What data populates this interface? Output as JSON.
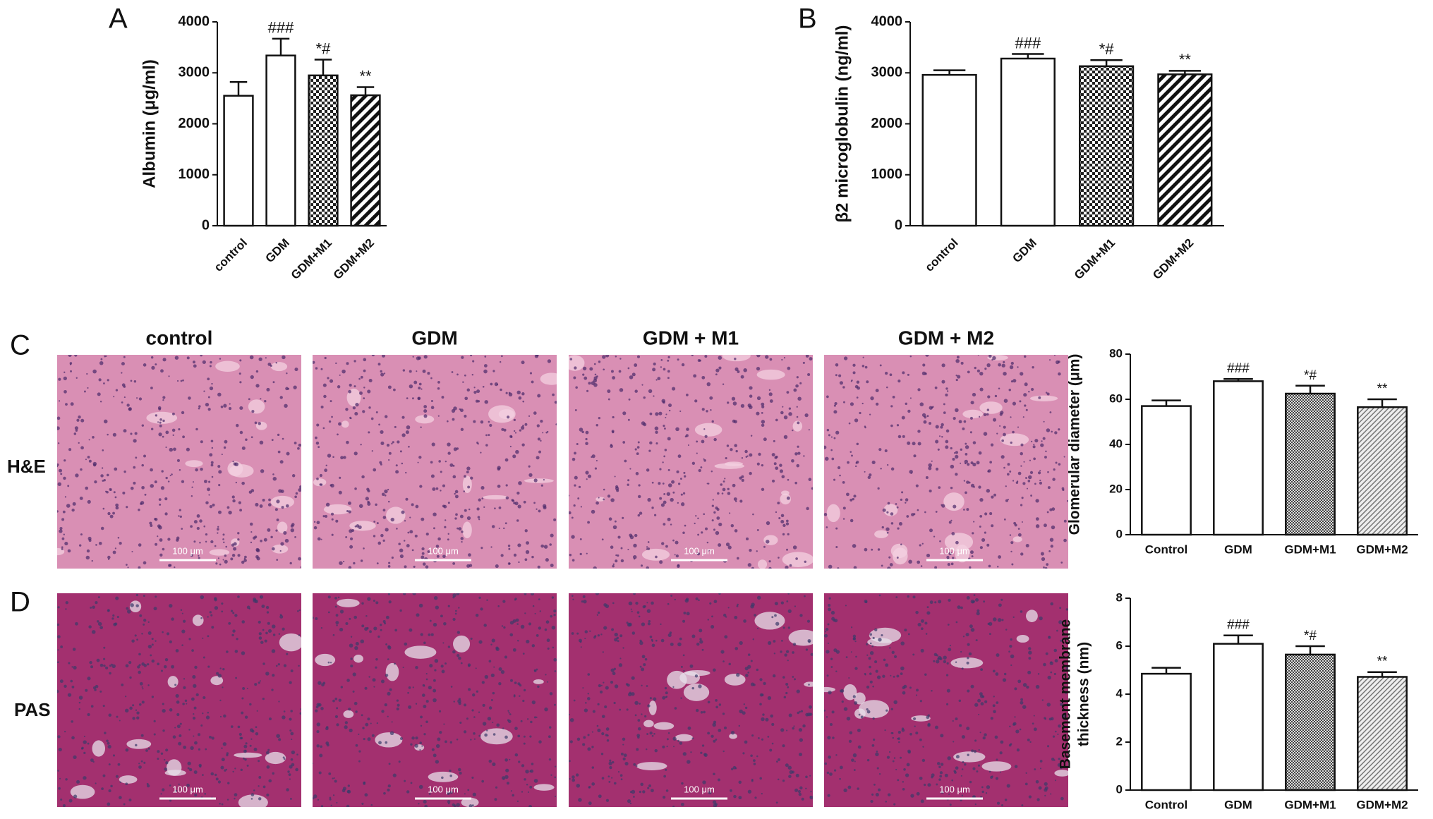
{
  "figure": {
    "panels": [
      "A",
      "B",
      "C",
      "D"
    ],
    "columns": [
      "control",
      "GDM",
      "GDM + M1",
      "GDM + M2"
    ],
    "rows": [
      "H&E",
      "PAS"
    ],
    "scale_bar": "100 μm"
  },
  "chart_data": [
    {
      "type": "bar",
      "ylabel": [
        "Albumin (μg/ml)"
      ],
      "categories": [
        "control",
        "GDM",
        "GDM+M1",
        "GDM+M2"
      ],
      "values": [
        2550,
        3340,
        2950,
        2560
      ],
      "errors": [
        270,
        330,
        310,
        160
      ],
      "annotations": [
        null,
        "###",
        "*#",
        "**"
      ],
      "patterns": [
        "white",
        "black",
        "checker",
        "hatch"
      ],
      "ylim": [
        0,
        4000
      ],
      "yticks": [
        0,
        1000,
        2000,
        3000,
        4000
      ]
    },
    {
      "type": "bar",
      "ylabel": [
        "β2 microglobulin (ng/ml)"
      ],
      "categories": [
        "control",
        "GDM",
        "GDM+M1",
        "GDM+M2"
      ],
      "values": [
        2960,
        3280,
        3130,
        2970
      ],
      "errors": [
        90,
        90,
        120,
        70
      ],
      "annotations": [
        null,
        "###",
        "*#",
        "**"
      ],
      "patterns": [
        "white",
        "black",
        "checker",
        "hatch"
      ],
      "ylim": [
        0,
        4000
      ],
      "yticks": [
        0,
        1000,
        2000,
        3000,
        4000
      ]
    },
    {
      "type": "bar",
      "ylabel": [
        "Glomerular diameter (μm)"
      ],
      "categories": [
        "Control",
        "GDM",
        "GDM+M1",
        "GDM+M2"
      ],
      "values": [
        57,
        68,
        62.5,
        56.5
      ],
      "errors": [
        2.5,
        1,
        3.5,
        3.5
      ],
      "annotations": [
        null,
        "###",
        "*#",
        "**"
      ],
      "patterns": [
        "white",
        "black",
        "checker-fine",
        "hatch-fine"
      ],
      "ylim": [
        0,
        80
      ],
      "yticks": [
        0,
        20,
        40,
        60,
        80
      ]
    },
    {
      "type": "bar",
      "ylabel": [
        "Basement membrane",
        "thickness (nm)"
      ],
      "categories": [
        "Control",
        "GDM",
        "GDM+M1",
        "GDM+M2"
      ],
      "values": [
        4.85,
        6.1,
        5.65,
        4.72
      ],
      "errors": [
        0.25,
        0.35,
        0.35,
        0.2
      ],
      "annotations": [
        null,
        "###",
        "*#",
        "**"
      ],
      "patterns": [
        "white",
        "black",
        "checker-fine",
        "hatch-fine"
      ],
      "ylim": [
        0,
        8
      ],
      "yticks": [
        0,
        2,
        4,
        6,
        8
      ]
    }
  ]
}
